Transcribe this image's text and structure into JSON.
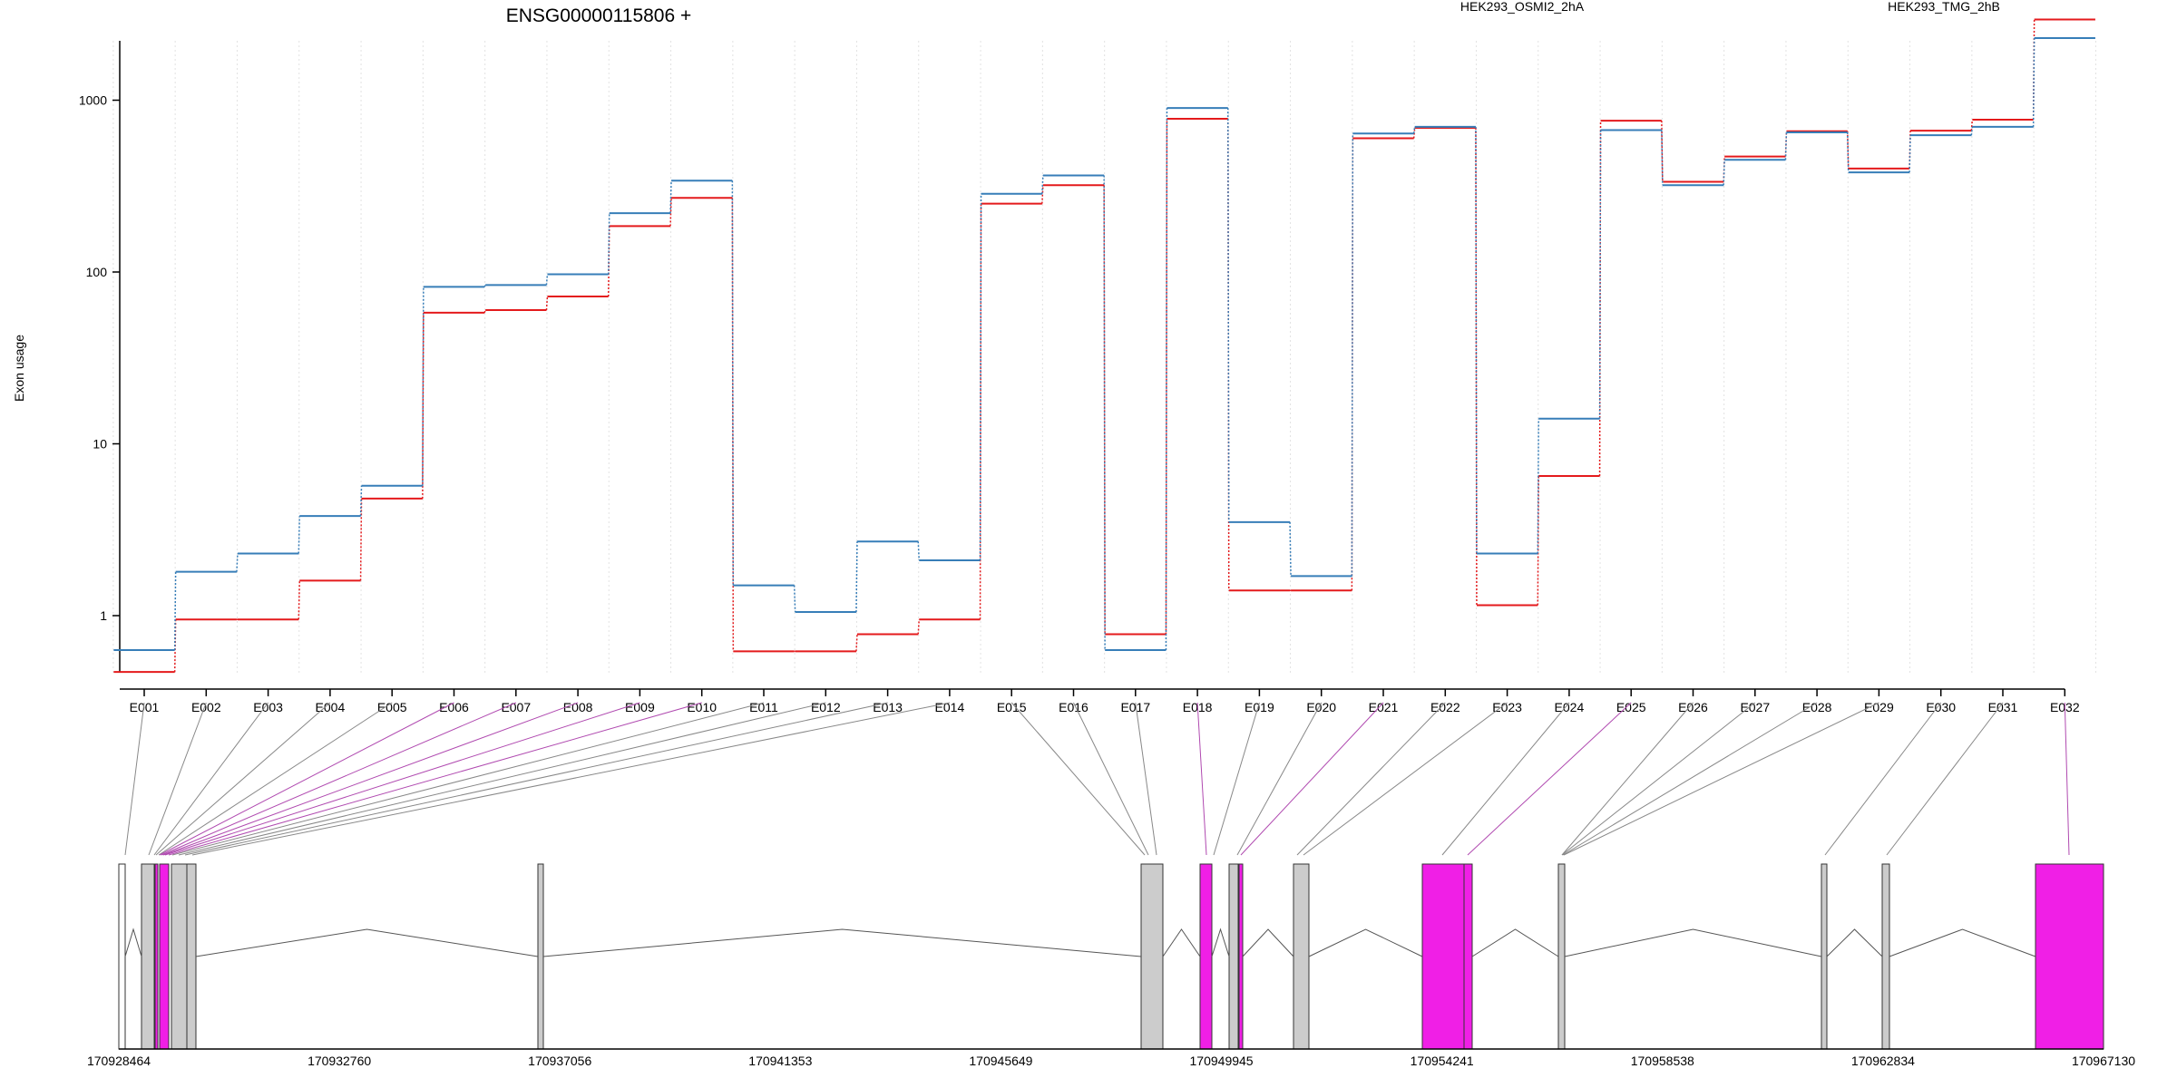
{
  "chart_data": {
    "type": "line",
    "title": "ENSG00000115806 +",
    "ylabel": "Exon usage",
    "y_scale": "log",
    "ylim": [
      0.5,
      3500
    ],
    "y_ticks": [
      1,
      10,
      100,
      1000
    ],
    "y_tick_labels": [
      "1",
      "10",
      "100",
      "1000"
    ],
    "grid": "vertical dotted",
    "legend": "top",
    "categories": [
      "E001",
      "E002",
      "E003",
      "E004",
      "E005",
      "E006",
      "E007",
      "E008",
      "E009",
      "E010",
      "E011",
      "E012",
      "E013",
      "E014",
      "E015",
      "E016",
      "E017",
      "E018",
      "E019",
      "E020",
      "E021",
      "E022",
      "E023",
      "E024",
      "E025",
      "E026",
      "E027",
      "E028",
      "E029",
      "E030",
      "E031",
      "E032"
    ],
    "series": [
      {
        "name": "HEK293_OSMI2_2hA",
        "color": "#e41a1c",
        "values": [
          0.47,
          0.95,
          0.95,
          1.6,
          4.8,
          58,
          60,
          72,
          185,
          270,
          0.62,
          0.62,
          0.78,
          0.95,
          250,
          320,
          0.78,
          780,
          1.4,
          1.4,
          600,
          690,
          1.15,
          6.5,
          760,
          335,
          470,
          660,
          400,
          665,
          770,
          2950
        ]
      },
      {
        "name": "HEK293_TMG_2hB",
        "color": "#377eb8",
        "values": [
          0.63,
          1.8,
          2.3,
          3.8,
          5.7,
          82,
          84,
          97,
          220,
          340,
          1.5,
          1.05,
          2.7,
          2.1,
          285,
          365,
          0.63,
          900,
          3.5,
          1.7,
          640,
          700,
          2.3,
          14,
          670,
          320,
          450,
          650,
          380,
          625,
          700,
          2300
        ]
      }
    ],
    "genomic_ticks": [
      "170928464",
      "170932760",
      "170937056",
      "170941353",
      "170945649",
      "170949945",
      "170954241",
      "170958538",
      "170962834",
      "170967130"
    ],
    "gene_model": {
      "exon_fill": "#cccccc",
      "highlight_fill": "#f01fe6",
      "line_color": "#888888",
      "highlight_line_color": "#b04ab0"
    }
  }
}
